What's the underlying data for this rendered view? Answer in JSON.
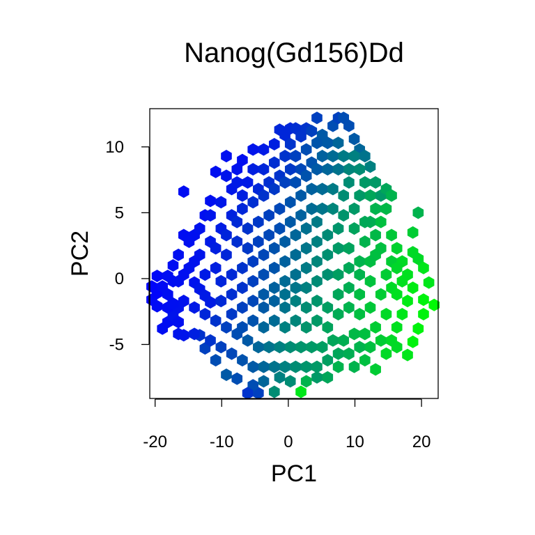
{
  "chart_data": {
    "type": "hexbin",
    "title": "Nanog(Gd156)Dd",
    "xlabel": "PC1",
    "ylabel": "PC2",
    "xlim": [
      -20.8,
      22.5
    ],
    "ylim": [
      -9.1,
      12.9
    ],
    "xticks": [
      -20,
      -10,
      0,
      10,
      20
    ],
    "xtick_labels": [
      "-20",
      "-10",
      "0",
      "10",
      "20"
    ],
    "yticks": [
      -5,
      0,
      5,
      10
    ],
    "ytick_labels": [
      "-5",
      "0",
      "5",
      "10"
    ],
    "color_low": "#0000ff",
    "color_high": "#00ff00",
    "grid": false,
    "legend": "none",
    "hex_width": 1.6,
    "cells": [
      [
        -20.5,
        -0.6,
        0.02
      ],
      [
        -20.5,
        -1.6,
        0.03
      ],
      [
        -19.7,
        -1.1,
        0.02
      ],
      [
        -19.7,
        -2.1,
        0.04
      ],
      [
        -18.9,
        -3.8,
        0.05
      ],
      [
        -18.1,
        -3.3,
        0.05
      ],
      [
        -17.3,
        -2.8,
        0.08
      ],
      [
        -16.5,
        -3.3,
        0.06
      ],
      [
        -15.7,
        -4.3,
        0.08
      ],
      [
        -14.1,
        -0.3,
        0.07
      ],
      [
        -13.3,
        -0.8,
        0.09
      ],
      [
        -12.5,
        -1.3,
        0.1
      ],
      [
        -11.7,
        -1.8,
        0.11
      ],
      [
        -15.7,
        6.6,
        0.05
      ],
      [
        -15.7,
        3.3,
        0.05
      ],
      [
        -14.1,
        3.3,
        0.06
      ],
      [
        -12.5,
        4.8,
        0.06
      ],
      [
        -11.7,
        5.9,
        0.06
      ],
      [
        -10.9,
        8.1,
        0.06
      ],
      [
        -9.3,
        9.3,
        0.06
      ],
      [
        -7.7,
        8.3,
        0.07
      ],
      [
        -6.9,
        9.0,
        0.06
      ],
      [
        -5.3,
        9.8,
        0.08
      ],
      [
        -3.7,
        9.8,
        0.1
      ],
      [
        -2.1,
        10.2,
        0.12
      ],
      [
        -1.3,
        11.3,
        0.15
      ],
      [
        -0.5,
        10.9,
        0.15
      ],
      [
        0.3,
        11.4,
        0.15
      ],
      [
        0.3,
        10.2,
        0.2
      ],
      [
        1.1,
        11.4,
        0.18
      ],
      [
        1.9,
        10.8,
        0.2
      ],
      [
        2.7,
        11.4,
        0.2
      ],
      [
        3.5,
        11.2,
        0.25
      ],
      [
        4.3,
        12.2,
        0.25
      ],
      [
        5.1,
        10.9,
        0.35
      ],
      [
        6.7,
        11.6,
        0.3
      ],
      [
        7.5,
        12.2,
        0.25
      ],
      [
        8.3,
        12.2,
        0.3
      ],
      [
        9.1,
        11.6,
        0.3
      ],
      [
        9.9,
        10.6,
        0.35
      ],
      [
        10.7,
        9.8,
        0.4
      ],
      [
        11.5,
        9.3,
        0.45
      ],
      [
        12.3,
        8.5,
        0.5
      ],
      [
        13.1,
        7.3,
        0.6
      ],
      [
        13.9,
        6.3,
        0.6
      ],
      [
        14.7,
        6.8,
        0.65
      ],
      [
        15.5,
        6.3,
        0.7
      ],
      [
        19.5,
        5.0,
        0.7
      ],
      [
        18.7,
        3.5,
        0.8
      ],
      [
        18.7,
        2.0,
        0.85
      ],
      [
        19.5,
        1.5,
        0.85
      ],
      [
        20.3,
        0.8,
        0.9
      ],
      [
        21.1,
        -0.3,
        0.9
      ],
      [
        20.3,
        -1.6,
        0.95
      ],
      [
        21.9,
        -2.0,
        0.98
      ],
      [
        20.3,
        -2.7,
        0.95
      ],
      [
        19.5,
        -3.8,
        0.95
      ],
      [
        18.7,
        -4.8,
        0.95
      ],
      [
        17.9,
        -5.8,
        0.9
      ],
      [
        16.3,
        -5.2,
        0.85
      ],
      [
        14.7,
        -5.7,
        0.85
      ],
      [
        13.1,
        -6.9,
        0.8
      ],
      [
        11.5,
        -6.2,
        0.75
      ],
      [
        9.9,
        -6.7,
        0.7
      ],
      [
        7.5,
        -6.7,
        0.7
      ],
      [
        5.9,
        -7.5,
        0.65
      ],
      [
        4.3,
        -7.5,
        0.6
      ],
      [
        2.7,
        -7.8,
        0.7
      ],
      [
        1.9,
        -8.6,
        0.9
      ],
      [
        0.3,
        -7.8,
        0.55
      ],
      [
        -1.3,
        -7.5,
        0.5
      ],
      [
        -2.1,
        -8.6,
        0.55
      ],
      [
        -3.7,
        -7.8,
        0.4
      ],
      [
        -4.5,
        -8.7,
        0.25
      ],
      [
        -5.3,
        -8.1,
        0.3
      ],
      [
        -6.1,
        -8.7,
        0.2
      ],
      [
        -7.7,
        -7.6,
        0.3
      ],
      [
        -9.3,
        -7.3,
        0.35
      ],
      [
        -10.9,
        -6.2,
        0.3
      ],
      [
        -12.5,
        -5.3,
        0.25
      ],
      [
        -13.3,
        -4.3,
        0.2
      ],
      [
        -9.3,
        7.8,
        0.08
      ],
      [
        -8.5,
        6.8,
        0.09
      ],
      [
        -7.7,
        7.3,
        0.1
      ],
      [
        -6.9,
        6.3,
        0.12
      ],
      [
        -6.1,
        7.3,
        0.1
      ],
      [
        -5.3,
        8.3,
        0.12
      ],
      [
        -4.5,
        6.8,
        0.15
      ],
      [
        -3.7,
        8.3,
        0.15
      ],
      [
        -2.9,
        7.3,
        0.18
      ],
      [
        -2.1,
        8.8,
        0.18
      ],
      [
        -1.3,
        7.8,
        0.2
      ],
      [
        -0.5,
        9.3,
        0.2
      ],
      [
        0.3,
        8.3,
        0.22
      ],
      [
        1.1,
        9.3,
        0.25
      ],
      [
        1.9,
        8.3,
        0.28
      ],
      [
        2.7,
        9.8,
        0.3
      ],
      [
        3.5,
        8.8,
        0.32
      ],
      [
        4.3,
        10.3,
        0.33
      ],
      [
        5.1,
        9.3,
        0.38
      ],
      [
        5.9,
        10.3,
        0.35
      ],
      [
        6.7,
        9.3,
        0.42
      ],
      [
        7.5,
        10.3,
        0.4
      ],
      [
        8.3,
        9.3,
        0.48
      ],
      [
        9.1,
        8.3,
        0.52
      ],
      [
        9.9,
        9.3,
        0.5
      ],
      [
        10.7,
        8.3,
        0.55
      ],
      [
        11.5,
        7.3,
        0.6
      ],
      [
        12.3,
        6.3,
        0.65
      ],
      [
        13.1,
        5.3,
        0.7
      ],
      [
        13.9,
        4.3,
        0.75
      ],
      [
        14.7,
        5.3,
        0.72
      ],
      [
        15.5,
        3.3,
        0.78
      ],
      [
        16.3,
        2.3,
        0.82
      ],
      [
        17.1,
        1.3,
        0.85
      ],
      [
        17.9,
        0.3,
        0.88
      ],
      [
        18.7,
        -0.7,
        0.92
      ],
      [
        17.9,
        -1.7,
        0.92
      ],
      [
        17.1,
        -2.7,
        0.9
      ],
      [
        16.3,
        -3.7,
        0.88
      ],
      [
        15.5,
        -4.7,
        0.85
      ],
      [
        13.9,
        -4.7,
        0.8
      ],
      [
        12.3,
        -5.2,
        0.75
      ],
      [
        10.7,
        -5.2,
        0.7
      ],
      [
        9.1,
        -5.7,
        0.68
      ],
      [
        7.5,
        -5.7,
        0.65
      ],
      [
        5.9,
        -6.2,
        0.62
      ],
      [
        4.3,
        -6.7,
        0.6
      ],
      [
        2.7,
        -6.7,
        0.58
      ],
      [
        1.1,
        -6.7,
        0.55
      ],
      [
        -0.5,
        -6.7,
        0.5
      ],
      [
        -2.1,
        -6.7,
        0.45
      ],
      [
        -3.7,
        -6.7,
        0.4
      ],
      [
        -5.3,
        -6.7,
        0.35
      ],
      [
        -6.9,
        -6.2,
        0.32
      ],
      [
        -8.5,
        -5.7,
        0.28
      ],
      [
        -10.1,
        -5.2,
        0.25
      ],
      [
        -11.7,
        -4.7,
        0.2
      ],
      [
        -14.1,
        -4.2,
        0.12
      ],
      [
        -16.5,
        -4.2,
        0.08
      ],
      [
        -18.1,
        -2.2,
        0.05
      ],
      [
        -17.3,
        -0.2,
        0.05
      ],
      [
        -16.5,
        1.8,
        0.06
      ],
      [
        -14.9,
        2.8,
        0.06
      ],
      [
        -13.3,
        3.8,
        0.07
      ],
      [
        -11.7,
        4.8,
        0.08
      ],
      [
        -10.1,
        5.8,
        0.09
      ],
      [
        -14.9,
        0.8,
        0.07
      ],
      [
        -13.3,
        1.8,
        0.08
      ],
      [
        -11.7,
        2.8,
        0.1
      ],
      [
        -10.1,
        3.8,
        0.11
      ],
      [
        -8.5,
        4.8,
        0.13
      ],
      [
        -6.9,
        5.3,
        0.15
      ],
      [
        -5.3,
        5.8,
        0.18
      ],
      [
        -3.7,
        6.3,
        0.2
      ],
      [
        -2.1,
        6.8,
        0.22
      ],
      [
        -0.5,
        7.3,
        0.25
      ],
      [
        1.1,
        7.3,
        0.3
      ],
      [
        2.7,
        7.8,
        0.32
      ],
      [
        4.3,
        8.3,
        0.35
      ],
      [
        5.9,
        8.3,
        0.4
      ],
      [
        7.5,
        8.3,
        0.45
      ],
      [
        9.1,
        7.3,
        0.55
      ],
      [
        10.7,
        6.3,
        0.6
      ],
      [
        12.3,
        4.3,
        0.68
      ],
      [
        13.9,
        2.3,
        0.75
      ],
      [
        15.5,
        1.3,
        0.8
      ],
      [
        15.5,
        -0.7,
        0.85
      ],
      [
        14.7,
        -2.7,
        0.85
      ],
      [
        13.1,
        -3.7,
        0.8
      ],
      [
        11.5,
        -4.2,
        0.75
      ],
      [
        9.9,
        -4.2,
        0.72
      ],
      [
        8.3,
        -4.7,
        0.68
      ],
      [
        6.7,
        -4.7,
        0.65
      ],
      [
        5.1,
        -5.2,
        0.62
      ],
      [
        3.5,
        -5.2,
        0.6
      ],
      [
        1.9,
        -5.2,
        0.58
      ],
      [
        0.3,
        -5.2,
        0.55
      ],
      [
        -1.3,
        -5.2,
        0.5
      ],
      [
        -2.9,
        -5.2,
        0.45
      ],
      [
        -4.5,
        -5.2,
        0.4
      ],
      [
        -6.1,
        -4.7,
        0.35
      ],
      [
        -7.7,
        -4.2,
        0.3
      ],
      [
        -9.3,
        -3.7,
        0.25
      ],
      [
        -10.9,
        -3.2,
        0.2
      ],
      [
        -12.5,
        -2.7,
        0.15
      ],
      [
        -14.1,
        -2.2,
        0.1
      ],
      [
        -15.7,
        -1.7,
        0.07
      ],
      [
        -15.7,
        0.3,
        0.06
      ],
      [
        -14.1,
        1.3,
        0.07
      ],
      [
        -12.5,
        0.3,
        0.1
      ],
      [
        -10.9,
        0.8,
        0.12
      ],
      [
        -10.9,
        2.3,
        0.12
      ],
      [
        -9.3,
        1.8,
        0.15
      ],
      [
        -9.3,
        3.3,
        0.14
      ],
      [
        -7.7,
        2.8,
        0.18
      ],
      [
        -7.7,
        4.3,
        0.16
      ],
      [
        -6.1,
        3.8,
        0.2
      ],
      [
        -6.1,
        2.3,
        0.22
      ],
      [
        -4.5,
        4.3,
        0.22
      ],
      [
        -4.5,
        2.8,
        0.25
      ],
      [
        -2.9,
        4.8,
        0.25
      ],
      [
        -2.9,
        3.3,
        0.28
      ],
      [
        -1.3,
        5.3,
        0.28
      ],
      [
        -1.3,
        3.8,
        0.3
      ],
      [
        0.3,
        5.8,
        0.32
      ],
      [
        0.3,
        4.3,
        0.35
      ],
      [
        1.9,
        6.3,
        0.35
      ],
      [
        1.9,
        4.8,
        0.38
      ],
      [
        3.5,
        6.8,
        0.38
      ],
      [
        3.5,
        5.3,
        0.42
      ],
      [
        5.1,
        6.8,
        0.42
      ],
      [
        5.1,
        5.3,
        0.46
      ],
      [
        6.7,
        6.8,
        0.48
      ],
      [
        6.7,
        5.3,
        0.52
      ],
      [
        8.3,
        6.3,
        0.55
      ],
      [
        8.3,
        4.8,
        0.58
      ],
      [
        9.9,
        5.3,
        0.6
      ],
      [
        9.9,
        3.8,
        0.64
      ],
      [
        11.5,
        4.3,
        0.66
      ],
      [
        11.5,
        2.8,
        0.7
      ],
      [
        13.1,
        3.3,
        0.72
      ],
      [
        13.1,
        1.8,
        0.75
      ],
      [
        14.7,
        0.3,
        0.8
      ],
      [
        13.9,
        -1.2,
        0.8
      ],
      [
        12.3,
        -2.2,
        0.78
      ],
      [
        12.3,
        -0.2,
        0.76
      ],
      [
        10.7,
        -1.2,
        0.74
      ],
      [
        10.7,
        -2.7,
        0.75
      ],
      [
        9.1,
        -2.2,
        0.7
      ],
      [
        9.1,
        -0.7,
        0.68
      ],
      [
        7.5,
        -1.2,
        0.65
      ],
      [
        7.5,
        -2.7,
        0.67
      ],
      [
        5.9,
        -2.2,
        0.62
      ],
      [
        5.9,
        -3.7,
        0.64
      ],
      [
        4.3,
        -3.2,
        0.6
      ],
      [
        4.3,
        -1.7,
        0.58
      ],
      [
        2.7,
        -2.2,
        0.55
      ],
      [
        2.7,
        -3.7,
        0.58
      ],
      [
        1.1,
        -3.2,
        0.52
      ],
      [
        1.1,
        -1.7,
        0.5
      ],
      [
        -0.5,
        -2.2,
        0.45
      ],
      [
        -0.5,
        -3.7,
        0.5
      ],
      [
        -2.1,
        -3.2,
        0.42
      ],
      [
        -2.1,
        -1.7,
        0.38
      ],
      [
        -3.7,
        -2.2,
        0.35
      ],
      [
        -3.7,
        -3.7,
        0.4
      ],
      [
        -5.3,
        -3.2,
        0.32
      ],
      [
        -5.3,
        -1.7,
        0.28
      ],
      [
        -6.9,
        -2.2,
        0.25
      ],
      [
        -6.9,
        -3.7,
        0.3
      ],
      [
        -8.5,
        -2.7,
        0.22
      ],
      [
        -8.5,
        -1.2,
        0.18
      ],
      [
        -10.1,
        -1.7,
        0.16
      ],
      [
        -10.1,
        -0.2,
        0.14
      ],
      [
        -8.5,
        0.3,
        0.16
      ],
      [
        -6.9,
        -0.7,
        0.2
      ],
      [
        -6.9,
        0.8,
        0.2
      ],
      [
        -5.3,
        -0.2,
        0.25
      ],
      [
        -5.3,
        1.3,
        0.24
      ],
      [
        -3.7,
        0.3,
        0.3
      ],
      [
        -3.7,
        1.8,
        0.28
      ],
      [
        -2.1,
        0.8,
        0.33
      ],
      [
        -2.1,
        2.3,
        0.32
      ],
      [
        -0.5,
        1.3,
        0.38
      ],
      [
        -0.5,
        2.8,
        0.36
      ],
      [
        1.1,
        1.8,
        0.42
      ],
      [
        1.1,
        3.3,
        0.4
      ],
      [
        2.7,
        2.3,
        0.46
      ],
      [
        2.7,
        3.8,
        0.44
      ],
      [
        4.3,
        2.8,
        0.5
      ],
      [
        4.3,
        4.3,
        0.48
      ],
      [
        5.9,
        3.3,
        0.54
      ],
      [
        5.9,
        1.8,
        0.56
      ],
      [
        7.5,
        2.3,
        0.6
      ],
      [
        7.5,
        3.8,
        0.58
      ],
      [
        9.1,
        2.3,
        0.64
      ],
      [
        9.1,
        0.8,
        0.66
      ],
      [
        10.7,
        1.3,
        0.7
      ],
      [
        10.7,
        0.3,
        0.7
      ],
      [
        12.3,
        1.3,
        0.74
      ],
      [
        5.9,
        0.3,
        0.56
      ],
      [
        4.3,
        1.3,
        0.52
      ],
      [
        4.3,
        -0.2,
        0.54
      ],
      [
        2.7,
        0.8,
        0.48
      ],
      [
        2.7,
        -0.7,
        0.5
      ],
      [
        1.1,
        0.3,
        0.44
      ],
      [
        1.1,
        -0.7,
        0.46
      ],
      [
        -0.5,
        -0.2,
        0.42
      ],
      [
        -0.5,
        -1.2,
        0.44
      ],
      [
        -2.1,
        -0.7,
        0.38
      ],
      [
        -3.7,
        -1.2,
        0.35
      ],
      [
        7.5,
        0.3,
        0.62
      ],
      [
        16.3,
        -1.2,
        0.88
      ],
      [
        17.1,
        -0.2,
        0.88
      ],
      [
        16.3,
        0.8,
        0.84
      ],
      [
        -18.9,
        -0.6,
        0.04
      ],
      [
        -18.1,
        0.2,
        0.05
      ],
      [
        -18.1,
        -1.2,
        0.05
      ],
      [
        -17.3,
        1.0,
        0.05
      ],
      [
        -16.5,
        -0.2,
        0.06
      ],
      [
        -16.5,
        -2.2,
        0.07
      ],
      [
        -19.7,
        0.2,
        0.03
      ],
      [
        -17.3,
        -1.9,
        0.06
      ]
    ]
  }
}
